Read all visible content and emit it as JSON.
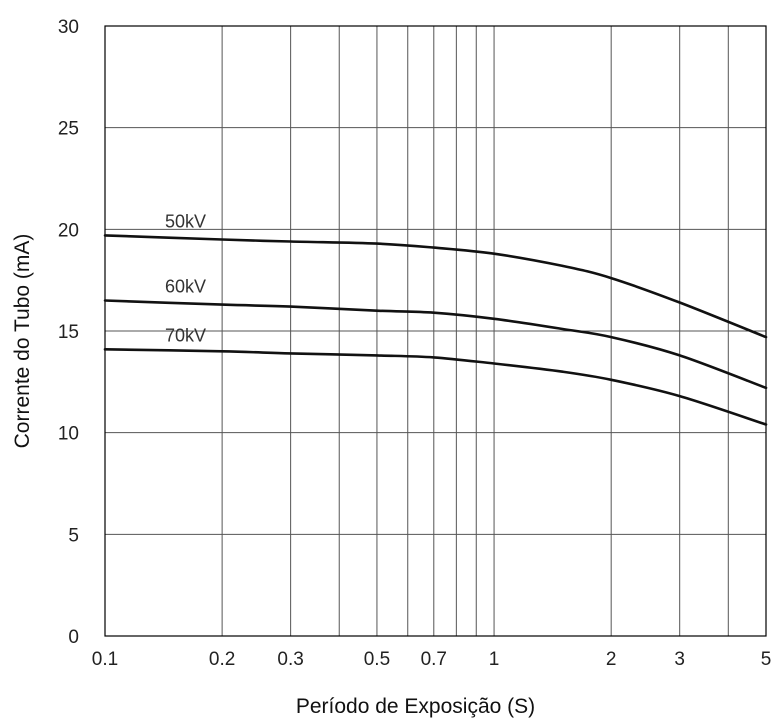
{
  "chart_data": {
    "type": "line",
    "xlabel": "Período de Exposição (S)",
    "ylabel": "Corrente do Tubo (mA)",
    "x_scale": "log",
    "xlim": [
      0.1,
      5
    ],
    "ylim": [
      0,
      30
    ],
    "grid": true,
    "x_gridlines": [
      0.1,
      0.2,
      0.3,
      0.4,
      0.5,
      0.6,
      0.7,
      0.8,
      0.9,
      1,
      2,
      3,
      4,
      5
    ],
    "y_gridlines": [
      0,
      5,
      10,
      15,
      20,
      25,
      30
    ],
    "x_ticks": [
      {
        "value": 0.1,
        "label": "0.1"
      },
      {
        "value": 0.2,
        "label": "0.2"
      },
      {
        "value": 0.3,
        "label": "0.3"
      },
      {
        "value": 0.5,
        "label": "0.5"
      },
      {
        "value": 0.7,
        "label": "0.7"
      },
      {
        "value": 1,
        "label": "1"
      },
      {
        "value": 2,
        "label": "2"
      },
      {
        "value": 3,
        "label": "3"
      },
      {
        "value": 5,
        "label": "5"
      }
    ],
    "y_ticks": [
      {
        "value": 0,
        "label": "0"
      },
      {
        "value": 5,
        "label": "5"
      },
      {
        "value": 10,
        "label": "10"
      },
      {
        "value": 15,
        "label": "15"
      },
      {
        "value": 20,
        "label": "20"
      },
      {
        "value": 25,
        "label": "25"
      },
      {
        "value": 30,
        "label": "30"
      }
    ],
    "series": [
      {
        "name": "50kV",
        "x": [
          0.1,
          0.2,
          0.3,
          0.5,
          0.7,
          1,
          1.5,
          2,
          3,
          5
        ],
        "y": [
          19.7,
          19.5,
          19.4,
          19.3,
          19.1,
          18.8,
          18.2,
          17.6,
          16.4,
          14.7
        ]
      },
      {
        "name": "60kV",
        "x": [
          0.1,
          0.2,
          0.3,
          0.5,
          0.7,
          1,
          1.5,
          2,
          3,
          5
        ],
        "y": [
          16.5,
          16.3,
          16.2,
          16.0,
          15.9,
          15.6,
          15.1,
          14.7,
          13.8,
          12.2
        ]
      },
      {
        "name": "70kV",
        "x": [
          0.1,
          0.2,
          0.3,
          0.5,
          0.7,
          1,
          1.5,
          2,
          3,
          5
        ],
        "y": [
          14.1,
          14.0,
          13.9,
          13.8,
          13.7,
          13.4,
          13.0,
          12.6,
          11.8,
          10.4
        ]
      }
    ]
  }
}
